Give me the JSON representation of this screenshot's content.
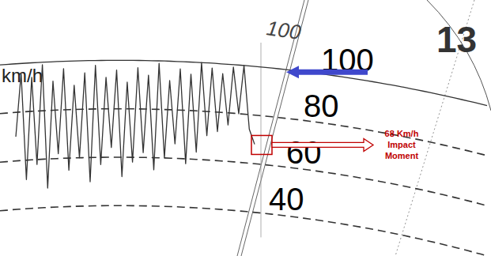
{
  "chart_data": {
    "type": "tachograph",
    "y_label": "km/h",
    "scale_label": "100",
    "hour_label": "13",
    "categories": [
      null,
      null,
      null,
      null,
      null,
      null,
      null,
      null,
      null,
      null,
      null,
      null,
      null,
      null,
      null,
      null,
      null,
      null,
      null,
      null,
      null,
      null,
      null,
      null,
      null,
      null,
      null,
      null,
      null,
      null,
      null,
      null,
      null,
      null,
      null,
      null,
      null,
      null,
      null,
      null,
      null,
      null,
      null,
      null,
      null,
      null
    ],
    "values": [
      70,
      96,
      52,
      94,
      58,
      99,
      48,
      92,
      62,
      97,
      55,
      90,
      60,
      95,
      50,
      98,
      57,
      93,
      64,
      96,
      52,
      91,
      58,
      97,
      62,
      94,
      55,
      99,
      60,
      92,
      66,
      97,
      58,
      95,
      63,
      100,
      70,
      98,
      72,
      96,
      75,
      99,
      80,
      100,
      74,
      68
    ],
    "color": "#333333",
    "ylim": [
      30,
      110
    ],
    "yticks": [
      40,
      60,
      80,
      100
    ],
    "annotations": [
      {
        "value": 99,
        "color": "#3f48cc"
      },
      {
        "value": 68,
        "text": [
          "68 Km/h",
          "Impact",
          "Moment"
        ],
        "color": "#c00000"
      }
    ]
  }
}
